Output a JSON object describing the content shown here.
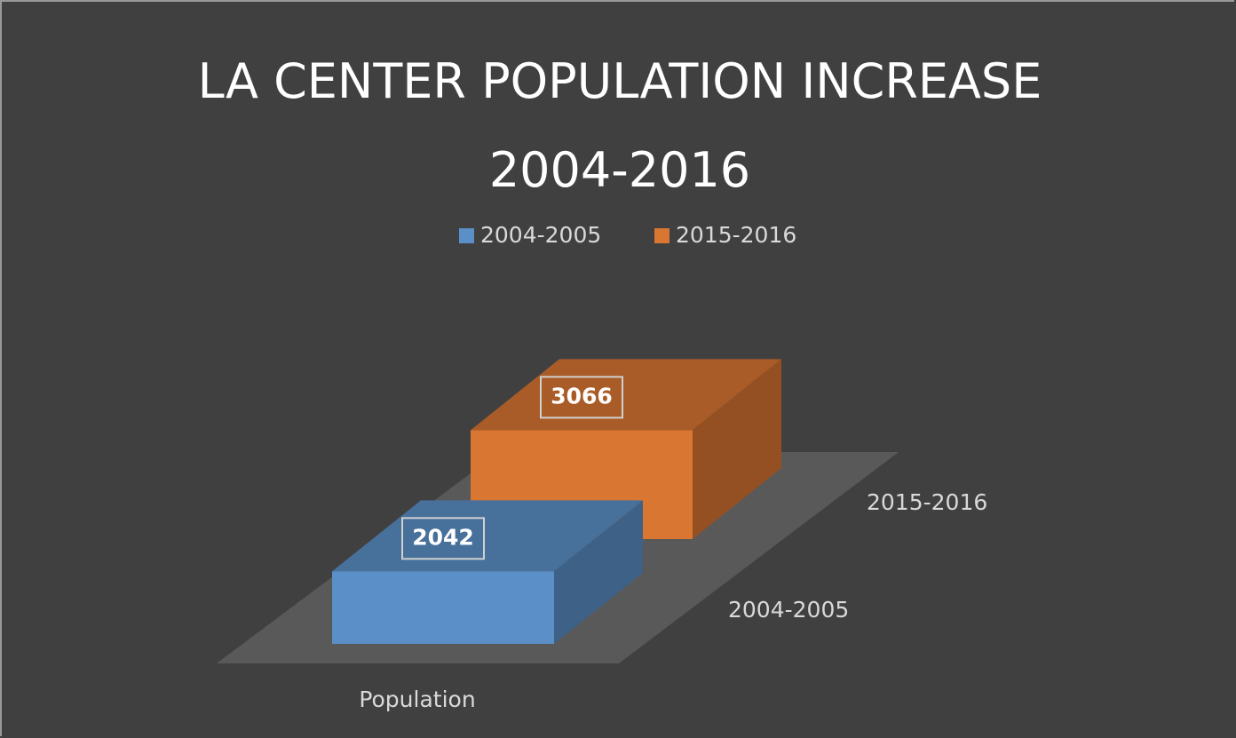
{
  "chart_data": {
    "type": "bar3d",
    "title": "LA CENTER POPULATION INCREASE 2004-2016",
    "categories": [
      "Population"
    ],
    "series": [
      {
        "name": "2004-2005",
        "color": "#5b8fc7",
        "values": [
          2042
        ]
      },
      {
        "name": "2015-2016",
        "color": "#d97632",
        "values": [
          3066
        ]
      }
    ],
    "legend": "top"
  }
}
